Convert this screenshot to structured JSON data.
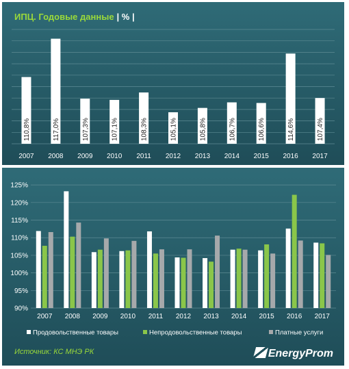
{
  "top": {
    "title": "ИПЦ. Годовые данные",
    "unit": "| % |"
  },
  "bottom": {
    "source": "Источник: КС МНЭ РК",
    "logo": "EnergyProm"
  },
  "chart_data": [
    {
      "type": "bar",
      "title": "ИПЦ. Годовые данные",
      "categories": [
        "2007",
        "2008",
        "2009",
        "2010",
        "2011",
        "2012",
        "2013",
        "2014",
        "2015",
        "2016",
        "2017"
      ],
      "values": [
        110.8,
        117.0,
        107.3,
        107.1,
        108.3,
        105.1,
        105.8,
        106.7,
        106.6,
        114.6,
        107.4
      ],
      "value_labels": [
        "110,8%",
        "117,0%",
        "107,3%",
        "107,1%",
        "108,3%",
        "105,1%",
        "105,8%",
        "106,7%",
        "106,6%",
        "114,6%",
        "107,4%"
      ],
      "ylim": [
        100,
        118.5
      ],
      "grid": true,
      "colors": {
        "bar": "#ffffff",
        "grid": "#5e8b94",
        "text": "#ffffff"
      }
    },
    {
      "type": "bar",
      "categories": [
        "2007",
        "2008",
        "2009",
        "2010",
        "2011",
        "2012",
        "2013",
        "2014",
        "2015",
        "2016",
        "2017"
      ],
      "yticks": [
        "125%",
        "120%",
        "115%",
        "110%",
        "105%",
        "100%",
        "95%",
        "90%"
      ],
      "ylim": [
        90,
        126
      ],
      "grid": true,
      "legend": "bottom",
      "series": [
        {
          "name": "Продовольственные товары",
          "color": "#ffffff",
          "values": [
            111.9,
            123.2,
            105.9,
            106.2,
            111.8,
            104.4,
            104.2,
            106.6,
            106.4,
            112.6,
            108.6
          ]
        },
        {
          "name": "Непродовольственные товары",
          "color": "#8ac64a",
          "values": [
            107.7,
            110.3,
            106.6,
            106.4,
            105.5,
            104.3,
            103.2,
            106.9,
            108.1,
            122.2,
            108.4
          ]
        },
        {
          "name": "Платные услуги",
          "color": "#a6a9ab",
          "values": [
            111.6,
            114.3,
            109.8,
            109.1,
            106.7,
            106.7,
            110.6,
            106.6,
            105.5,
            109.2,
            105.1
          ]
        }
      ]
    }
  ]
}
